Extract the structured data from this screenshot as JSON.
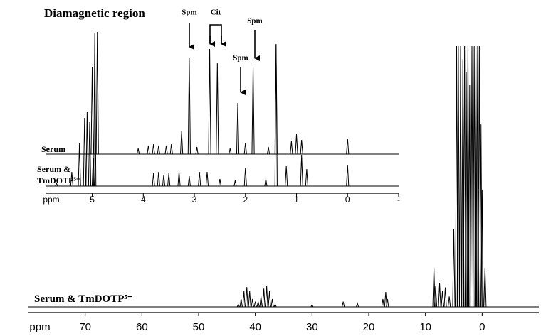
{
  "chart_data": [
    {
      "type": "line",
      "title": "Diamagnetic region",
      "x_label": "ppm",
      "xlim": [
        5.9,
        -1
      ],
      "ylim": [
        0,
        100
      ],
      "xticks": [
        5,
        4,
        3,
        2,
        1,
        0,
        {
          "value": -1,
          "label": "-"
        }
      ],
      "annotations": [
        "Spm",
        "Cit",
        "Spm",
        "Spm"
      ],
      "series": [
        {
          "name": "Serum",
          "color": "#000000",
          "x": [
            5.0,
            4.9,
            4.1,
            3.9,
            3.8,
            3.7,
            3.55,
            3.45,
            3.25,
            3.1,
            2.95,
            2.7,
            2.55,
            2.3,
            2.15,
            2.0,
            1.85,
            1.55,
            1.4,
            1.1,
            1.0,
            0.9,
            0.0
          ],
          "values": [
            61,
            86,
            4,
            6,
            7,
            6,
            6,
            7,
            16,
            68,
            5,
            74,
            64,
            4,
            36,
            8,
            62,
            5,
            77,
            9,
            14,
            10,
            11
          ]
        },
        {
          "name": "Serum & TmDOTP⁵⁻",
          "color": "#000000",
          "x": [
            5.7,
            5.4,
            5.25,
            5.15,
            5.1,
            5.05,
            4.98,
            4.95,
            3.8,
            3.7,
            3.6,
            3.5,
            3.3,
            3.1,
            2.9,
            2.75,
            2.5,
            2.2,
            2.0,
            1.6,
            1.4,
            1.2,
            0.9,
            0.8,
            0.0
          ],
          "values": [
            2,
            10,
            30,
            48,
            52,
            45,
            20,
            108,
            9,
            10,
            8,
            9,
            10,
            7,
            10,
            10,
            5,
            4,
            13,
            5,
            100,
            14,
            22,
            12,
            15
          ]
        }
      ]
    },
    {
      "type": "line",
      "x_label": "ppm",
      "xlim": [
        80,
        -10
      ],
      "ylim": [
        0,
        100
      ],
      "xticks": [
        70,
        60,
        50,
        40,
        30,
        20,
        10,
        0
      ],
      "series": [
        {
          "name": "Serum & TmDOTP⁵⁻",
          "color": "#000000",
          "x": [
            43,
            42.5,
            42,
            41.5,
            41,
            40.5,
            40,
            39.5,
            39,
            38.5,
            38,
            37.5,
            37,
            36.5,
            30,
            24.5,
            22,
            17.5,
            17,
            16.7,
            8.5,
            8.2,
            7.5,
            7,
            6.5,
            5.8,
            5,
            4.5,
            4.2,
            3.8,
            3.4,
            3.1,
            2.8,
            2.5,
            2.2,
            1.8,
            1.4,
            1.1,
            0.8,
            0.5,
            0.2,
            0,
            -0.5
          ],
          "values": [
            1,
            3,
            6,
            7.6,
            6,
            3,
            2,
            2,
            4,
            7,
            8,
            6,
            3,
            1,
            0.8,
            2,
            1.4,
            3,
            5.7,
            3,
            15,
            8,
            9,
            6,
            7.5,
            4,
            30,
            100,
            100,
            100,
            95,
            100,
            90,
            100,
            85,
            100,
            100,
            100,
            100,
            100,
            70,
            45,
            15
          ]
        }
      ]
    }
  ]
}
